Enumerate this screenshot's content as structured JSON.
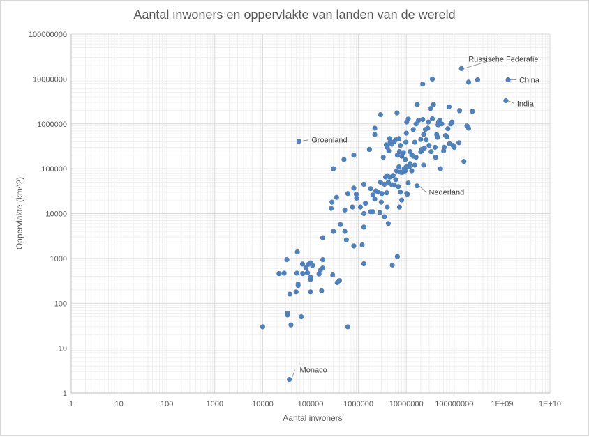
{
  "chart_data": {
    "type": "scatter",
    "title": "Aantal inwoners en oppervlakte van landen van de wereld",
    "xlabel": "Aantal inwoners",
    "ylabel": "Oppervlakte (km^2)",
    "xscale": "log",
    "yscale": "log",
    "xlim": [
      1,
      10000000000
    ],
    "ylim": [
      1,
      100000000
    ],
    "grid": "major and minor",
    "marker_color": "#4f81bd",
    "x_ticks": [
      {
        "v": 1,
        "label": "1"
      },
      {
        "v": 10,
        "label": "10"
      },
      {
        "v": 100,
        "label": "100"
      },
      {
        "v": 1000,
        "label": "1000"
      },
      {
        "v": 10000,
        "label": "10000"
      },
      {
        "v": 100000,
        "label": "100000"
      },
      {
        "v": 1000000,
        "label": "1000000"
      },
      {
        "v": 10000000,
        "label": "10000000"
      },
      {
        "v": 100000000,
        "label": "100000000"
      },
      {
        "v": 1000000000,
        "label": "1E+09"
      },
      {
        "v": 10000000000,
        "label": "1E+10"
      }
    ],
    "y_ticks": [
      {
        "v": 1,
        "label": "1"
      },
      {
        "v": 10,
        "label": "10"
      },
      {
        "v": 100,
        "label": "100"
      },
      {
        "v": 1000,
        "label": "1000"
      },
      {
        "v": 10000,
        "label": "10000"
      },
      {
        "v": 100000,
        "label": "100000"
      },
      {
        "v": 1000000,
        "label": "1000000"
      },
      {
        "v": 10000000,
        "label": "10000000"
      },
      {
        "v": 100000000,
        "label": "100000000"
      }
    ],
    "annotations": [
      {
        "label": "Russische Federatie",
        "x": 142000000,
        "y": 17100000
      },
      {
        "label": "China",
        "x": 1340000000,
        "y": 9600000
      },
      {
        "label": "India",
        "x": 1200000000,
        "y": 3290000
      },
      {
        "label": "Groenland",
        "x": 57000,
        "y": 410000
      },
      {
        "label": "Nederland",
        "x": 16700000,
        "y": 41500
      },
      {
        "label": "Monaco",
        "x": 36000,
        "y": 2
      }
    ],
    "points": [
      [
        142000000,
        17100000
      ],
      [
        1340000000,
        9600000
      ],
      [
        1200000000,
        3290000
      ],
      [
        310000000,
        9600000
      ],
      [
        200000000,
        8500000
      ],
      [
        22000000,
        7700000
      ],
      [
        35000000,
        10000000
      ],
      [
        57000,
        410000
      ],
      [
        16700000,
        41500
      ],
      [
        36000,
        2
      ],
      [
        10000,
        30
      ],
      [
        33000,
        60
      ],
      [
        33000,
        55
      ],
      [
        39000,
        33
      ],
      [
        64000,
        50
      ],
      [
        600000,
        30
      ],
      [
        37000,
        160
      ],
      [
        50000,
        180
      ],
      [
        55000,
        250
      ],
      [
        55000,
        270
      ],
      [
        100000,
        180
      ],
      [
        170000,
        190
      ],
      [
        400000,
        320
      ],
      [
        360000,
        290
      ],
      [
        28000,
        470
      ],
      [
        32000,
        940
      ],
      [
        53000,
        1400
      ],
      [
        52000,
        470
      ],
      [
        68000,
        750
      ],
      [
        69000,
        460
      ],
      [
        90000,
        740
      ],
      [
        86000,
        480
      ],
      [
        100000,
        800
      ],
      [
        110000,
        700
      ],
      [
        100000,
        380
      ],
      [
        100000,
        340
      ],
      [
        150000,
        450
      ],
      [
        160000,
        540
      ],
      [
        180000,
        610
      ],
      [
        180000,
        940
      ],
      [
        290000,
        430
      ],
      [
        80000,
        620
      ],
      [
        22000,
        460
      ],
      [
        180000,
        2900
      ],
      [
        300000,
        4000
      ],
      [
        420000,
        5700
      ],
      [
        520000,
        4000
      ],
      [
        560000,
        2600
      ],
      [
        800000,
        1900
      ],
      [
        1200000,
        2000
      ],
      [
        1300000,
        760
      ],
      [
        5100000,
        710
      ],
      [
        6500000,
        1100
      ],
      [
        270000,
        13000
      ],
      [
        280000,
        18000
      ],
      [
        350000,
        23000
      ],
      [
        600000,
        28000
      ],
      [
        520000,
        12000
      ],
      [
        750000,
        14000
      ],
      [
        1300000,
        5000
      ],
      [
        1300000,
        10000
      ],
      [
        1800000,
        11000
      ],
      [
        2000000,
        11000
      ],
      [
        2800000,
        10500
      ],
      [
        3000000,
        18000
      ],
      [
        4000000,
        14000
      ],
      [
        4200000,
        6000
      ],
      [
        3500000,
        8500
      ],
      [
        7200000,
        14000
      ],
      [
        1300000,
        45000
      ],
      [
        800000,
        37000
      ],
      [
        900000,
        27000
      ],
      [
        920000,
        22000
      ],
      [
        1100000,
        14000
      ],
      [
        1400000,
        17000
      ],
      [
        1800000,
        36000
      ],
      [
        2000000,
        26000
      ],
      [
        2200000,
        21000
      ],
      [
        2300000,
        32000
      ],
      [
        2600000,
        30000
      ],
      [
        2900000,
        50000
      ],
      [
        3100000,
        28000
      ],
      [
        3500000,
        45000
      ],
      [
        3700000,
        65000
      ],
      [
        3900000,
        29000
      ],
      [
        4000000,
        70000
      ],
      [
        4200000,
        50000
      ],
      [
        4500000,
        65000
      ],
      [
        5000000,
        44000
      ],
      [
        5300000,
        71000
      ],
      [
        5600000,
        43000
      ],
      [
        6000000,
        57000
      ],
      [
        6300000,
        90000
      ],
      [
        6800000,
        40000
      ],
      [
        7000000,
        110000
      ],
      [
        7500000,
        84000
      ],
      [
        7500000,
        30000
      ],
      [
        8000000,
        20000
      ],
      [
        8300000,
        83000
      ],
      [
        9000000,
        100000
      ],
      [
        9500000,
        90000
      ],
      [
        10000000,
        110000
      ],
      [
        10200000,
        28000
      ],
      [
        10500000,
        27000
      ],
      [
        11000000,
        48000
      ],
      [
        11500000,
        110000
      ],
      [
        12000000,
        130000
      ],
      [
        13000000,
        90000
      ],
      [
        14000000,
        190000
      ],
      [
        15000000,
        120000
      ],
      [
        16000000,
        180000
      ],
      [
        20000000,
        240000
      ],
      [
        21000000,
        250000
      ],
      [
        23000000,
        120000
      ],
      [
        300000,
        100000
      ],
      [
        500000,
        160000
      ],
      [
        800000,
        200000
      ],
      [
        1700000,
        270000
      ],
      [
        2200000,
        580000
      ],
      [
        2200000,
        800000
      ],
      [
        2900000,
        1600000
      ],
      [
        3300000,
        180000
      ],
      [
        3800000,
        340000
      ],
      [
        4000000,
        300000
      ],
      [
        4300000,
        250000
      ],
      [
        4500000,
        470000
      ],
      [
        4600000,
        390000
      ],
      [
        5000000,
        350000
      ],
      [
        5600000,
        400000
      ],
      [
        6000000,
        440000
      ],
      [
        6400000,
        1750000
      ],
      [
        6500000,
        200000
      ],
      [
        7000000,
        470000
      ],
      [
        7200000,
        240000
      ],
      [
        7500000,
        330000
      ],
      [
        8000000,
        190000
      ],
      [
        8700000,
        230000
      ],
      [
        9500000,
        160000
      ],
      [
        9800000,
        390000
      ],
      [
        10000000,
        620000
      ],
      [
        10200000,
        1100000
      ],
      [
        11000000,
        1280000
      ],
      [
        12000000,
        240000
      ],
      [
        13000000,
        200000
      ],
      [
        14000000,
        750000
      ],
      [
        15000000,
        390000
      ],
      [
        16000000,
        1000000
      ],
      [
        17000000,
        2700000
      ],
      [
        18000000,
        1200000
      ],
      [
        20000000,
        450000
      ],
      [
        21000000,
        270000
      ],
      [
        22000000,
        1250000
      ],
      [
        23000000,
        580000
      ],
      [
        24000000,
        290000
      ],
      [
        25000000,
        750000
      ],
      [
        26000000,
        440000
      ],
      [
        28000000,
        800000
      ],
      [
        29000000,
        1100000
      ],
      [
        30000000,
        330000
      ],
      [
        32000000,
        2200000
      ],
      [
        33000000,
        240000
      ],
      [
        35000000,
        1300000
      ],
      [
        37000000,
        2700000
      ],
      [
        40000000,
        300000
      ],
      [
        41000000,
        180000
      ],
      [
        43000000,
        580000
      ],
      [
        45000000,
        500000
      ],
      [
        46000000,
        950000
      ],
      [
        47000000,
        1100000
      ],
      [
        50000000,
        1200000
      ],
      [
        52000000,
        100000
      ],
      [
        55000000,
        1000000
      ],
      [
        60000000,
        250000
      ],
      [
        62000000,
        300000
      ],
      [
        66000000,
        550000
      ],
      [
        70000000,
        510000
      ],
      [
        74000000,
        780000
      ],
      [
        78000000,
        2400000
      ],
      [
        80000000,
        360000
      ],
      [
        85000000,
        1000000
      ],
      [
        90000000,
        1100000
      ],
      [
        95000000,
        330000
      ],
      [
        100000000,
        300000
      ],
      [
        126000000,
        380000
      ],
      [
        130000000,
        1960000
      ],
      [
        160000000,
        145000
      ],
      [
        185000000,
        900000
      ],
      [
        200000000,
        800000
      ],
      [
        240000000,
        1900000
      ]
    ]
  }
}
